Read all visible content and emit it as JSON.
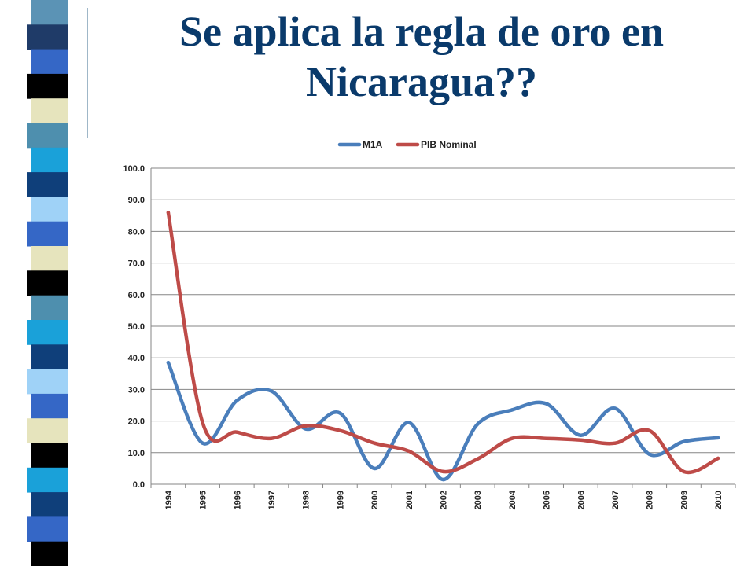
{
  "slide": {
    "title_line1": "Se aplica la regla de oro en",
    "title_line2": "Nicaragua??"
  },
  "decor": {
    "strip_colors": [
      "#5b93b5",
      "#1f3b68",
      "#3567c6",
      "#000000",
      "#e6e4bd",
      "#4e8fae",
      "#1aa1d9",
      "#0f3f7a",
      "#9fd2f7",
      "#3567c6",
      "#e6e4bd",
      "#000000",
      "#4e8fae",
      "#1aa1d9",
      "#0f3f7a",
      "#9fd2f7",
      "#3567c6",
      "#e6e4bd",
      "#000000",
      "#1aa1d9",
      "#0f3f7a",
      "#3567c6",
      "#000000"
    ]
  },
  "chart_data": {
    "type": "line",
    "categories": [
      "1994",
      "1995",
      "1996",
      "1997",
      "1998",
      "1999",
      "2000",
      "2001",
      "2002",
      "2003",
      "2004",
      "2005",
      "2006",
      "2007",
      "2008",
      "2009",
      "2010"
    ],
    "series": [
      {
        "name": "M1A",
        "color": "#4a7ebb",
        "values": [
          38.5,
          13.0,
          26.5,
          29.5,
          17.5,
          22.5,
          5.0,
          19.5,
          1.5,
          19.0,
          23.5,
          25.5,
          15.5,
          24.0,
          9.5,
          13.5,
          14.7
        ]
      },
      {
        "name": "PIB Nominal",
        "color": "#be4b48",
        "values": [
          86.0,
          19.5,
          16.5,
          14.5,
          18.5,
          17.0,
          13.0,
          10.5,
          4.0,
          8.0,
          14.5,
          14.5,
          14.0,
          13.0,
          17.0,
          4.0,
          8.2
        ]
      }
    ],
    "yticks": [
      "0.0",
      "10.0",
      "20.0",
      "30.0",
      "40.0",
      "50.0",
      "60.0",
      "70.0",
      "80.0",
      "90.0",
      "100.0"
    ],
    "ylim": [
      0,
      100
    ],
    "grid": true,
    "legend_position": "top-center"
  }
}
